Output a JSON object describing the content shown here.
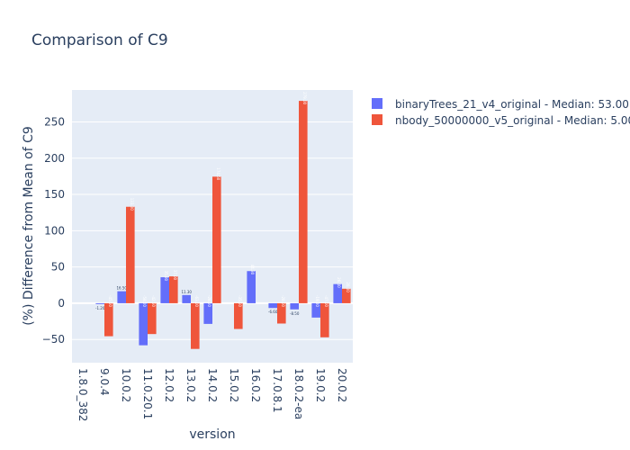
{
  "chart_data": {
    "type": "bar",
    "title": "Comparison of C9",
    "xlabel": "version",
    "ylabel": "(%) Difference from Mean of C9",
    "categories": [
      "1.8.0_382",
      "9.0.4",
      "10.0.2",
      "11.0.20.1",
      "12.0.2",
      "13.0.2",
      "14.0.2",
      "15.0.2",
      "16.0.2",
      "17.0.8.1",
      "18.0.2-ea",
      "19.0.2",
      "20.0.2"
    ],
    "ylim": [
      -82,
      294
    ],
    "yticks": [
      -50,
      0,
      50,
      100,
      150,
      200,
      250
    ],
    "grid": true,
    "legend_position": "top-right",
    "colors": [
      "#636efa",
      "#ef553b"
    ],
    "background": "#e5ecf6",
    "series": [
      {
        "name": "binaryTrees_21_v4_original - Median: 53.00",
        "values": [
          null,
          -1.2,
          16.5,
          -58,
          35.8,
          11.3,
          -28.5,
          null,
          44.3,
          -6.6,
          -8.5,
          -19.8,
          26.4
        ],
        "labels": [
          "",
          "-1.20",
          "16.50",
          "-58.00",
          "35.80",
          "11.30",
          "-28.50",
          "",
          "44.30",
          "-6.60",
          "-8.50",
          "-19.80",
          "26.40"
        ]
      },
      {
        "name": "nbody_50000000_v5_original - Median: 5.00",
        "values": [
          null,
          -45.5,
          133,
          -42.5,
          37,
          -63,
          174.5,
          -35.5,
          null,
          -28,
          279,
          -47,
          20
        ],
        "labels": [
          "",
          "-45.50",
          "133.00",
          "-42.50",
          "37.00",
          "-63.00",
          "174.50",
          "-35.50",
          "",
          "-28.00",
          "279.00",
          "-47.00",
          "20.00"
        ]
      }
    ]
  }
}
